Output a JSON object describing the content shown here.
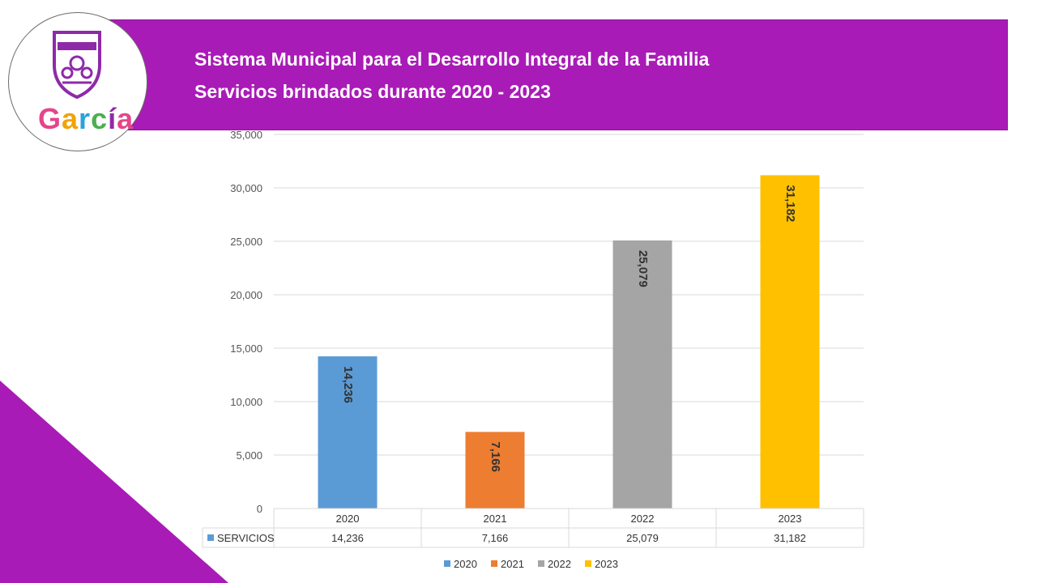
{
  "header": {
    "title_line1": "Sistema Municipal para el Desarrollo Integral de la Familia",
    "title_line2": "Servicios brindados durante 2020 - 2023"
  },
  "logo": {
    "word": "García",
    "letter_colors": [
      "#e5458a",
      "#f2a300",
      "#2aa3d9",
      "#4caf50",
      "#8e2aa8",
      "#e5458a"
    ]
  },
  "colors": {
    "banner": "#a91bb6",
    "corner": "#a91bb6"
  },
  "chart_data": {
    "type": "bar",
    "categories": [
      "2020",
      "2021",
      "2022",
      "2023"
    ],
    "values": [
      14236,
      7166,
      25079,
      31182
    ],
    "value_labels": [
      "14,236",
      "7,166",
      "25,079",
      "31,182"
    ],
    "colors": [
      "#5b9bd5",
      "#ed7d31",
      "#a5a5a5",
      "#ffc000"
    ],
    "ylim": [
      0,
      35000
    ],
    "yticks": [
      0,
      5000,
      10000,
      15000,
      20000,
      25000,
      30000,
      35000
    ],
    "ytick_labels": [
      "0",
      "5,000",
      "10,000",
      "15,000",
      "20,000",
      "25,000",
      "30,000",
      "35,000"
    ],
    "grid": true,
    "data_table": {
      "row_label": "SERVICIOS",
      "cells": [
        "14,236",
        "7,166",
        "25,079",
        "31,182"
      ]
    },
    "legend": {
      "position": "bottom",
      "entries": [
        "2020",
        "2021",
        "2022",
        "2023"
      ]
    }
  }
}
